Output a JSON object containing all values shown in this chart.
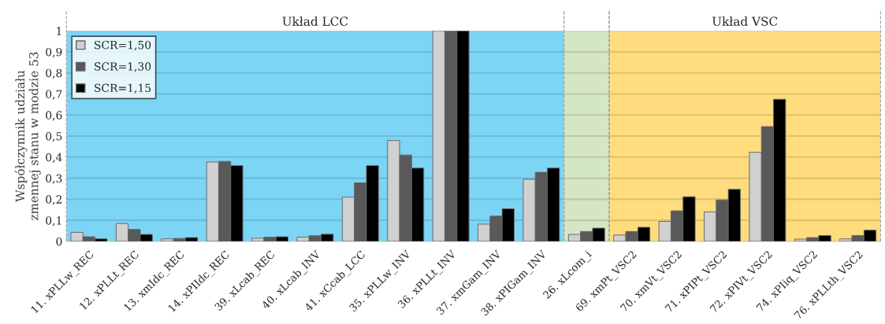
{
  "chart_data": {
    "type": "bar",
    "ylabel": "Współczynnik udziału\nzmennej stanu w modzie 53",
    "categories": [
      "11. xPLLw_REC",
      "12. xPLLt_REC",
      "13. xmIdc_REC",
      "14. xPIIdc_REC",
      "39. xLcab_REC",
      "40. xLcab_INV",
      "41. xCcab_LCC",
      "35. xPLLw_INV",
      "36. xPLLt_INV",
      "37. xmGam_INV",
      "38. xPIGam_INV",
      "26. xLcom_i",
      "69. xmPt_VSC2",
      "70. xmVt_VSC2",
      "71. xPIPt_VSC2",
      "72. xPIVt_VSC2",
      "74. xPIiq_VSC2",
      "76. xPLLth_VSC2"
    ],
    "series": [
      {
        "name": "SCR=1,50",
        "color": "#d0d0d0",
        "values": [
          0.043,
          0.085,
          0.012,
          0.377,
          0.015,
          0.02,
          0.21,
          0.479,
          1,
          0.082,
          0.295,
          0.033,
          0.03,
          0.095,
          0.14,
          0.423,
          0.011,
          0.012
        ]
      },
      {
        "name": "SCR=1,30",
        "color": "#595959",
        "values": [
          0.022,
          0.057,
          0.014,
          0.38,
          0.02,
          0.027,
          0.278,
          0.41,
          1,
          0.12,
          0.328,
          0.047,
          0.047,
          0.145,
          0.197,
          0.545,
          0.018,
          0.028
        ]
      },
      {
        "name": "SCR=1,15",
        "color": "#000000",
        "values": [
          0.012,
          0.033,
          0.018,
          0.36,
          0.022,
          0.034,
          0.36,
          0.348,
          1,
          0.155,
          0.348,
          0.063,
          0.067,
          0.212,
          0.247,
          0.675,
          0.028,
          0.053
        ]
      }
    ],
    "bands": [
      {
        "axis": "x",
        "from": "11. xPLLw_REC",
        "to": "38. xPIGam_INV",
        "label": "Układ LCC",
        "color": "#7dd5f5"
      },
      {
        "axis": "x",
        "from": "26. xLcom_i",
        "to": "26. xLcom_i",
        "color": "#d5e6c4"
      },
      {
        "axis": "x",
        "from": "69. xmPt_VSC2",
        "to": "76. xPLLth_VSC2",
        "label": "Układ VSC",
        "color": "#ffdc7e"
      }
    ],
    "ylim": [
      0,
      1
    ],
    "yticks": [
      0,
      {
        "value": 0.1,
        "label": "0,1"
      },
      {
        "value": 0.2,
        "label": "0,2"
      },
      {
        "value": 0.3,
        "label": "0,3"
      },
      {
        "value": 0.4,
        "label": "0,4"
      },
      {
        "value": 0.5,
        "label": "0,5"
      },
      {
        "value": 0.6,
        "label": "0,6"
      },
      {
        "value": 0.7,
        "label": "0,7"
      },
      {
        "value": 0.8,
        "label": "0,8"
      },
      {
        "value": 0.9,
        "label": "0,9"
      },
      1
    ],
    "grid": "y",
    "legend": "top left"
  }
}
